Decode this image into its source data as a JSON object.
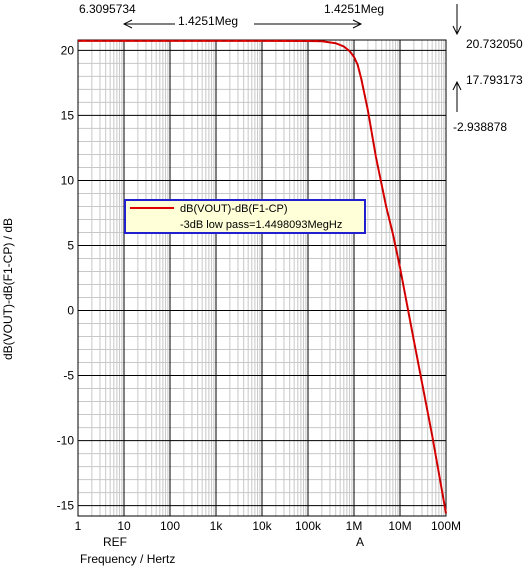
{
  "chart_data": {
    "type": "line",
    "xscale": "log",
    "xlim": [
      1,
      100000000
    ],
    "ylim": [
      -15.8,
      20.8
    ],
    "x_ticks": [
      {
        "value": 1,
        "label": "1"
      },
      {
        "value": 10,
        "label": "10"
      },
      {
        "value": 100,
        "label": "100"
      },
      {
        "value": 1000,
        "label": "1k"
      },
      {
        "value": 10000,
        "label": "10k"
      },
      {
        "value": 100000,
        "label": "100k"
      },
      {
        "value": 1000000,
        "label": "1M"
      },
      {
        "value": 10000000,
        "label": "10M"
      },
      {
        "value": 100000000,
        "label": "100M"
      }
    ],
    "y_ticks": [
      {
        "value": 20,
        "label": "20"
      },
      {
        "value": 15,
        "label": "15"
      },
      {
        "value": 10,
        "label": "10"
      },
      {
        "value": 5,
        "label": "5"
      },
      {
        "value": 0,
        "label": "0"
      },
      {
        "value": -5,
        "label": "-5"
      },
      {
        "value": -10,
        "label": "-10"
      },
      {
        "value": -15,
        "label": "-15"
      }
    ],
    "xlabel": "Frequency / Hertz",
    "ylabel": "dB(VOUT)-dB(F1-CP) / dB",
    "grid": true,
    "series": [
      {
        "name": "dB(VOUT)-dB(F1-CP)",
        "color": "#e00000",
        "points": [
          [
            1,
            20.73
          ],
          [
            10,
            20.73
          ],
          [
            100,
            20.73
          ],
          [
            1000,
            20.73
          ],
          [
            10000,
            20.73
          ],
          [
            100000,
            20.72
          ],
          [
            200000,
            20.7
          ],
          [
            400000,
            20.55
          ],
          [
            600000,
            20.3
          ],
          [
            800000,
            19.95
          ],
          [
            1000000,
            19.5
          ],
          [
            1200000,
            18.9
          ],
          [
            1445000,
            17.79
          ],
          [
            2000000,
            15.4
          ],
          [
            3000000,
            11.8
          ],
          [
            5000000,
            8.0
          ],
          [
            7000000,
            5.9
          ],
          [
            10000000,
            3.3
          ],
          [
            20000000,
            -2.3
          ],
          [
            50000000,
            -9.6
          ],
          [
            100000000,
            -15.6
          ]
        ]
      }
    ],
    "legend": {
      "placement": "center-left",
      "entries": [
        {
          "label": "dB(VOUT)-dB(F1-CP)"
        },
        {
          "label": "-3dB low pass=1.4498093MegHz"
        }
      ]
    },
    "cursors": [
      {
        "name": "REF",
        "x": 6.3095734,
        "x_label": "6.3095734"
      },
      {
        "name": "A",
        "x": 1425100,
        "x_label": "1.4251Meg"
      }
    ],
    "cursor_delta_label": "1.4251Meg",
    "y_readouts": {
      "top": "20.732050",
      "mid": "17.793173",
      "delta": "-2.938878"
    }
  }
}
